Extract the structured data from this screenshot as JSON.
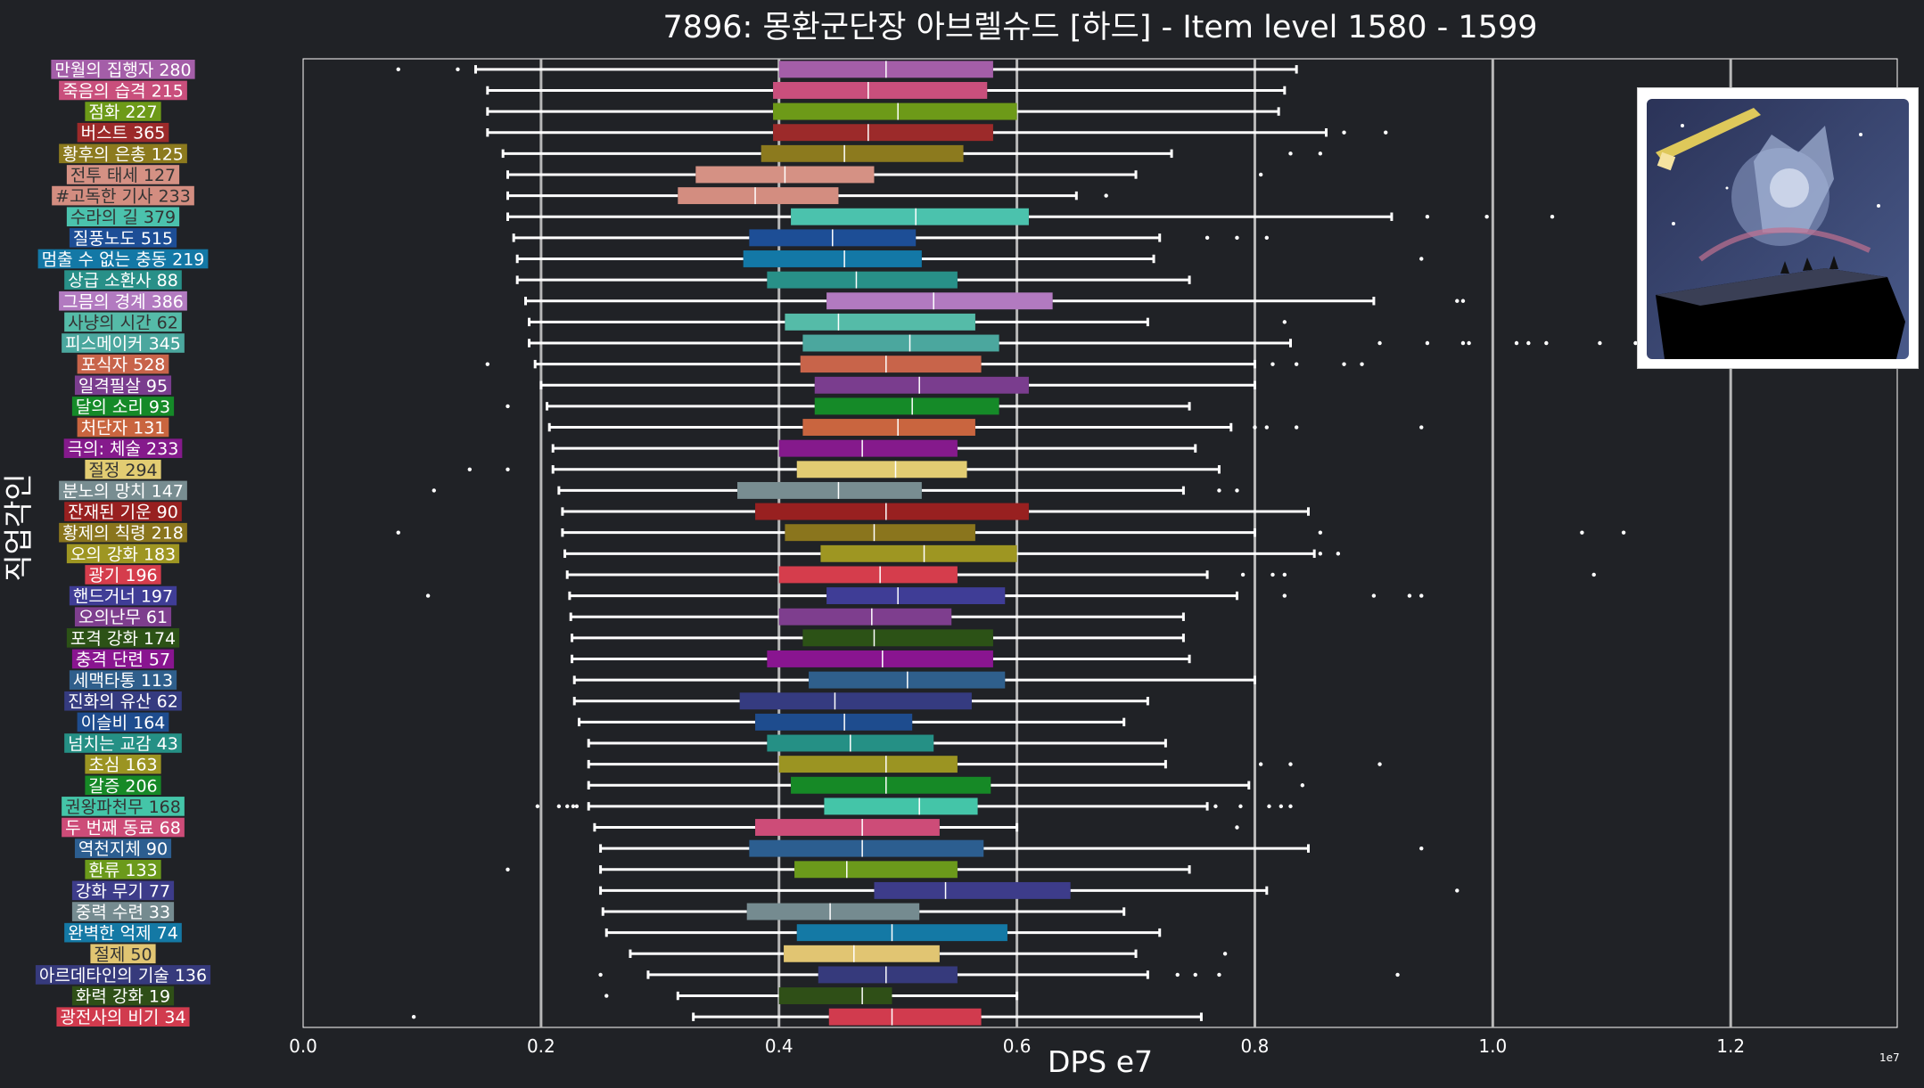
{
  "chart_data": {
    "type": "boxplot",
    "orientation": "horizontal",
    "title": "7896: 몽환군단장 아브렐슈드 [하드] - Item level 1580 - 1599",
    "xlabel": "DPS e7",
    "x_exponent_label": "1e7",
    "ylabel": "직업각인",
    "xlim": [
      0.0,
      1.34
    ],
    "xticks": [
      0.0,
      0.2,
      0.4,
      0.6,
      0.8,
      1.0,
      1.2
    ],
    "xtick_labels": [
      "0.0",
      "0.2",
      "0.4",
      "0.6",
      "0.8",
      "1.0",
      "1.2"
    ],
    "grid": "vertical",
    "series": [
      {
        "label": "만월의 집행자 280",
        "color": "#a45ea8",
        "whisker_low": 0.145,
        "q1": 0.4,
        "median": 0.49,
        "q3": 0.58,
        "whisker_high": 0.835,
        "outliers": [
          0.08,
          0.13
        ]
      },
      {
        "label": "죽음의 습격 215",
        "color": "#c94f7c",
        "whisker_low": 0.155,
        "q1": 0.395,
        "median": 0.475,
        "q3": 0.575,
        "whisker_high": 0.825,
        "outliers": []
      },
      {
        "label": "점화 227",
        "color": "#6d9a18",
        "whisker_low": 0.155,
        "q1": 0.395,
        "median": 0.5,
        "q3": 0.6,
        "whisker_high": 0.82,
        "outliers": []
      },
      {
        "label": "버스트 365",
        "color": "#9c2a2a",
        "whisker_low": 0.155,
        "q1": 0.395,
        "median": 0.475,
        "q3": 0.58,
        "whisker_high": 0.86,
        "outliers": [
          0.875,
          0.91
        ]
      },
      {
        "label": "황후의 은총 125",
        "color": "#8c7a1e",
        "whisker_low": 0.168,
        "q1": 0.385,
        "median": 0.455,
        "q3": 0.555,
        "whisker_high": 0.73,
        "outliers": [
          0.83,
          0.855
        ]
      },
      {
        "label": "전투 태세 127",
        "color": "#d59184",
        "whisker_low": 0.172,
        "q1": 0.33,
        "median": 0.405,
        "q3": 0.48,
        "whisker_high": 0.7,
        "outliers": [
          0.805
        ]
      },
      {
        "label": "#고독한 기사 233",
        "color": "#d38d80",
        "whisker_low": 0.172,
        "q1": 0.315,
        "median": 0.38,
        "q3": 0.45,
        "whisker_high": 0.65,
        "outliers": [
          0.675
        ]
      },
      {
        "label": "수라의 길 379",
        "color": "#4bc2ad",
        "whisker_low": 0.172,
        "q1": 0.41,
        "median": 0.515,
        "q3": 0.61,
        "whisker_high": 0.915,
        "outliers": [
          0.945,
          0.995,
          1.05
        ]
      },
      {
        "label": "질풍노도 515",
        "color": "#1d4e96",
        "whisker_low": 0.177,
        "q1": 0.375,
        "median": 0.445,
        "q3": 0.515,
        "whisker_high": 0.72,
        "outliers": [
          0.76,
          0.785,
          0.81
        ]
      },
      {
        "label": "멈출 수 없는 충동 219",
        "color": "#1378a6",
        "whisker_low": 0.18,
        "q1": 0.37,
        "median": 0.455,
        "q3": 0.52,
        "whisker_high": 0.715,
        "outliers": [
          0.94
        ]
      },
      {
        "label": "상급 소환사 88",
        "color": "#289088",
        "whisker_low": 0.18,
        "q1": 0.39,
        "median": 0.465,
        "q3": 0.55,
        "whisker_high": 0.745,
        "outliers": []
      },
      {
        "label": "그믐의 경계 386",
        "color": "#b27ac0",
        "whisker_low": 0.187,
        "q1": 0.44,
        "median": 0.53,
        "q3": 0.63,
        "whisker_high": 0.9,
        "outliers": [
          0.97,
          0.975
        ]
      },
      {
        "label": "사냥의 시간 62",
        "color": "#55bba8",
        "whisker_low": 0.19,
        "q1": 0.405,
        "median": 0.45,
        "q3": 0.565,
        "whisker_high": 0.71,
        "outliers": [
          0.825
        ]
      },
      {
        "label": "피스메이커 345",
        "color": "#4ba79e",
        "whisker_low": 0.19,
        "q1": 0.42,
        "median": 0.51,
        "q3": 0.585,
        "whisker_high": 0.83,
        "outliers": [
          0.905,
          0.945,
          0.975,
          0.98,
          1.02,
          1.03,
          1.045,
          1.09,
          1.12
        ]
      },
      {
        "label": "포식자 528",
        "color": "#c8644a",
        "whisker_low": 0.195,
        "q1": 0.418,
        "median": 0.49,
        "q3": 0.57,
        "whisker_high": 0.8,
        "outliers": [
          0.155,
          0.815,
          0.835,
          0.875,
          0.89
        ]
      },
      {
        "label": "일격필살 95",
        "color": "#7a3d8e",
        "whisker_low": 0.2,
        "q1": 0.43,
        "median": 0.518,
        "q3": 0.61,
        "whisker_high": 0.8,
        "outliers": []
      },
      {
        "label": "달의 소리 93",
        "color": "#158a28",
        "whisker_low": 0.205,
        "q1": 0.43,
        "median": 0.512,
        "q3": 0.585,
        "whisker_high": 0.745,
        "outliers": [
          0.172
        ]
      },
      {
        "label": "처단자 131",
        "color": "#c9653f",
        "whisker_low": 0.207,
        "q1": 0.42,
        "median": 0.5,
        "q3": 0.565,
        "whisker_high": 0.78,
        "outliers": [
          0.8,
          0.81,
          0.835,
          0.94
        ]
      },
      {
        "label": "극의: 체술 233",
        "color": "#851a8c",
        "whisker_low": 0.21,
        "q1": 0.4,
        "median": 0.47,
        "q3": 0.55,
        "whisker_high": 0.75,
        "outliers": []
      },
      {
        "label": "절정 294",
        "color": "#e2cc72",
        "whisker_low": 0.21,
        "q1": 0.415,
        "median": 0.498,
        "q3": 0.558,
        "whisker_high": 0.77,
        "outliers": [
          0.14,
          0.172
        ]
      },
      {
        "label": "분노의 망치 147",
        "color": "#788d91",
        "whisker_low": 0.215,
        "q1": 0.365,
        "median": 0.45,
        "q3": 0.52,
        "whisker_high": 0.74,
        "outliers": [
          0.11,
          0.77,
          0.785
        ]
      },
      {
        "label": "잔재된 기운 90",
        "color": "#982020",
        "whisker_low": 0.218,
        "q1": 0.38,
        "median": 0.49,
        "q3": 0.61,
        "whisker_high": 0.845,
        "outliers": []
      },
      {
        "label": "황제의 칙령 218",
        "color": "#8a751d",
        "whisker_low": 0.218,
        "q1": 0.405,
        "median": 0.48,
        "q3": 0.565,
        "whisker_high": 0.8,
        "outliers": [
          0.08,
          0.855,
          1.075,
          1.11
        ]
      },
      {
        "label": "오의 강화 183",
        "color": "#9e9622",
        "whisker_low": 0.22,
        "q1": 0.435,
        "median": 0.522,
        "q3": 0.6,
        "whisker_high": 0.85,
        "outliers": [
          0.855,
          0.87
        ]
      },
      {
        "label": "광기 196",
        "color": "#d53d4c",
        "whisker_low": 0.222,
        "q1": 0.4,
        "median": 0.485,
        "q3": 0.55,
        "whisker_high": 0.76,
        "outliers": [
          0.79,
          0.815,
          0.825,
          1.085
        ]
      },
      {
        "label": "핸드거너 197",
        "color": "#3f3d96",
        "whisker_low": 0.224,
        "q1": 0.44,
        "median": 0.5,
        "q3": 0.59,
        "whisker_high": 0.785,
        "outliers": [
          0.105,
          0.825,
          0.9,
          0.93,
          0.94
        ]
      },
      {
        "label": "오의난무 61",
        "color": "#7e3e8e",
        "whisker_low": 0.225,
        "q1": 0.4,
        "median": 0.478,
        "q3": 0.545,
        "whisker_high": 0.74,
        "outliers": []
      },
      {
        "label": "포격 강화 174",
        "color": "#2c5216",
        "whisker_low": 0.226,
        "q1": 0.42,
        "median": 0.48,
        "q3": 0.58,
        "whisker_high": 0.74,
        "outliers": []
      },
      {
        "label": "충격 단련 57",
        "color": "#891590",
        "whisker_low": 0.226,
        "q1": 0.39,
        "median": 0.487,
        "q3": 0.58,
        "whisker_high": 0.745,
        "outliers": []
      },
      {
        "label": "세맥타통 113",
        "color": "#2f5f8c",
        "whisker_low": 0.228,
        "q1": 0.425,
        "median": 0.508,
        "q3": 0.59,
        "whisker_high": 0.8,
        "outliers": []
      },
      {
        "label": "진화의 유산 62",
        "color": "#353b80",
        "whisker_low": 0.228,
        "q1": 0.367,
        "median": 0.447,
        "q3": 0.562,
        "whisker_high": 0.71,
        "outliers": []
      },
      {
        "label": "이슬비 164",
        "color": "#1e4c8e",
        "whisker_low": 0.232,
        "q1": 0.38,
        "median": 0.455,
        "q3": 0.512,
        "whisker_high": 0.69,
        "outliers": []
      },
      {
        "label": "넘치는 교감 43",
        "color": "#259085",
        "whisker_low": 0.24,
        "q1": 0.39,
        "median": 0.46,
        "q3": 0.53,
        "whisker_high": 0.725,
        "outliers": []
      },
      {
        "label": "초심 163",
        "color": "#9b9422",
        "whisker_low": 0.24,
        "q1": 0.4,
        "median": 0.49,
        "q3": 0.55,
        "whisker_high": 0.725,
        "outliers": [
          0.805,
          0.83,
          0.905
        ]
      },
      {
        "label": "갈증 206",
        "color": "#168926",
        "whisker_low": 0.24,
        "q1": 0.41,
        "median": 0.49,
        "q3": 0.578,
        "whisker_high": 0.795,
        "outliers": [
          0.84
        ]
      },
      {
        "label": "권왕파천무 168",
        "color": "#44c5a8",
        "whisker_low": 0.24,
        "q1": 0.438,
        "median": 0.518,
        "q3": 0.567,
        "whisker_high": 0.76,
        "outliers": [
          0.197,
          0.215,
          0.222,
          0.227,
          0.23,
          0.767,
          0.788,
          0.812,
          0.822,
          0.83
        ]
      },
      {
        "label": "두 번째 동료 68",
        "color": "#cd4c78",
        "whisker_low": 0.245,
        "q1": 0.38,
        "median": 0.47,
        "q3": 0.535,
        "whisker_high": 0.6,
        "outliers": [
          0.785
        ]
      },
      {
        "label": "역천지체 90",
        "color": "#2c5e90",
        "whisker_low": 0.25,
        "q1": 0.375,
        "median": 0.47,
        "q3": 0.572,
        "whisker_high": 0.845,
        "outliers": [
          0.94
        ]
      },
      {
        "label": "환류 133",
        "color": "#6b9a1b",
        "whisker_low": 0.25,
        "q1": 0.413,
        "median": 0.457,
        "q3": 0.55,
        "whisker_high": 0.745,
        "outliers": [
          0.172
        ]
      },
      {
        "label": "강화 무기 77",
        "color": "#3d3c8a",
        "whisker_low": 0.25,
        "q1": 0.48,
        "median": 0.54,
        "q3": 0.645,
        "whisker_high": 0.81,
        "outliers": [
          0.97
        ]
      },
      {
        "label": "중력 수련 33",
        "color": "#758b90",
        "whisker_low": 0.252,
        "q1": 0.373,
        "median": 0.443,
        "q3": 0.518,
        "whisker_high": 0.69,
        "outliers": []
      },
      {
        "label": "완벽한 억제 74",
        "color": "#1479a5",
        "whisker_low": 0.255,
        "q1": 0.415,
        "median": 0.495,
        "q3": 0.592,
        "whisker_high": 0.72,
        "outliers": []
      },
      {
        "label": "절제 50",
        "color": "#e1c572",
        "whisker_low": 0.275,
        "q1": 0.404,
        "median": 0.463,
        "q3": 0.535,
        "whisker_high": 0.7,
        "outliers": [
          0.775
        ]
      },
      {
        "label": "아르데타인의 기술 136",
        "color": "#363a7c",
        "whisker_low": 0.29,
        "q1": 0.433,
        "median": 0.49,
        "q3": 0.55,
        "whisker_high": 0.71,
        "outliers": [
          0.25,
          0.735,
          0.75,
          0.77,
          0.92
        ]
      },
      {
        "label": "화력 강화 19",
        "color": "#2f4f17",
        "whisker_low": 0.315,
        "q1": 0.4,
        "median": 0.47,
        "q3": 0.495,
        "whisker_high": 0.6,
        "outliers": [
          0.255
        ]
      },
      {
        "label": "광전사의 비기 34",
        "color": "#d13b4e",
        "whisker_low": 0.328,
        "q1": 0.442,
        "median": 0.495,
        "q3": 0.57,
        "whisker_high": 0.755,
        "outliers": [
          0.093
        ]
      }
    ]
  }
}
